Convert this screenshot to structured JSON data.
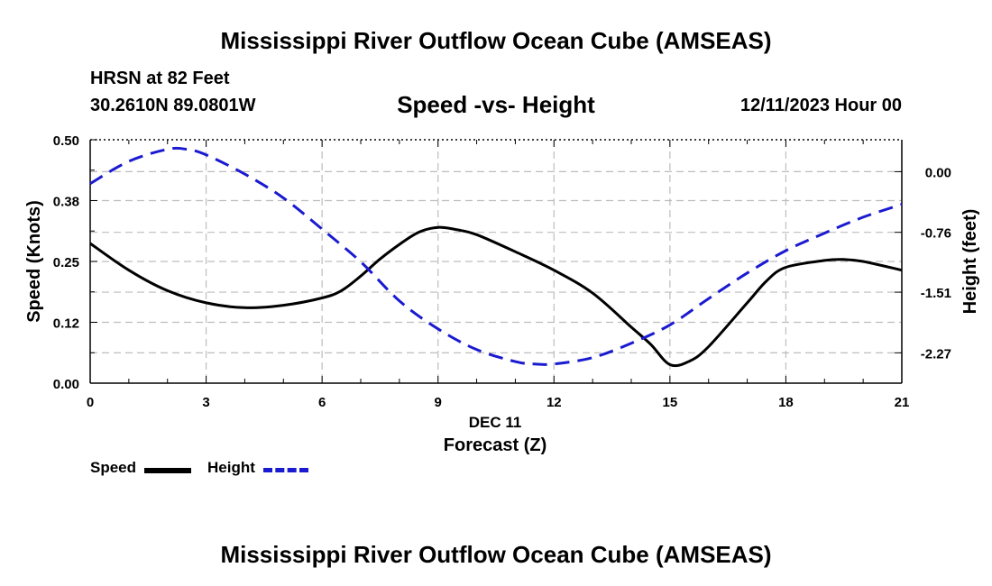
{
  "header": {
    "title": "Mississippi River Outflow Ocean Cube (AMSEAS)",
    "station_line": "HRSN at 82 Feet",
    "coords": "30.2610N  89.0801W",
    "datetime": "12/11/2023 Hour 00"
  },
  "footer": {
    "title": "Mississippi River Outflow Ocean Cube (AMSEAS)"
  },
  "colors": {
    "speed": "#000000",
    "height": "#1a1ad0",
    "grid": "#bdbdbd"
  },
  "chart_data": {
    "type": "line",
    "title": "Speed -vs- Height",
    "xlabel": "Forecast (Z)",
    "xsublabel": "DEC 11",
    "ylabel": "Speed (Knots)",
    "y2label": "Height (feet)",
    "xlim": [
      0,
      21
    ],
    "ylim": [
      0,
      0.5
    ],
    "y2lim": [
      -2.65,
      0.4
    ],
    "x_ticks": [
      0,
      3,
      6,
      9,
      12,
      15,
      18,
      21
    ],
    "y_ticks": [
      "0.00",
      "0.12",
      "0.25",
      "0.38",
      "0.50"
    ],
    "y_tick_values": [
      0,
      0.125,
      0.25,
      0.375,
      0.5
    ],
    "y2_ticks": [
      "0.00",
      "-0.76",
      "-1.51",
      "-2.27"
    ],
    "y2_tick_values": [
      0,
      -0.76,
      -1.51,
      -2.27
    ],
    "grid": true,
    "series": [
      {
        "name": "Speed",
        "axis": "left",
        "style": "solid",
        "x": [
          0,
          1,
          2,
          3,
          4,
          5,
          6,
          6.5,
          7,
          7.5,
          8,
          8.5,
          9,
          9.5,
          10,
          11,
          12,
          13,
          14,
          14.5,
          15,
          15.5,
          16,
          17,
          17.5,
          18,
          19,
          19.5,
          20,
          21
        ],
        "values": [
          0.287,
          0.232,
          0.19,
          0.165,
          0.155,
          0.16,
          0.175,
          0.19,
          0.22,
          0.255,
          0.285,
          0.31,
          0.32,
          0.315,
          0.305,
          0.27,
          0.232,
          0.185,
          0.115,
          0.08,
          0.038,
          0.045,
          0.075,
          0.165,
          0.21,
          0.238,
          0.252,
          0.254,
          0.25,
          0.232
        ]
      },
      {
        "name": "Height",
        "axis": "right",
        "style": "dashed",
        "x": [
          0,
          1,
          2,
          2.5,
          3,
          4,
          5,
          6,
          7,
          8,
          9,
          10,
          11,
          11.5,
          12,
          13,
          14,
          15,
          16,
          17,
          18,
          19,
          20,
          21
        ],
        "values": [
          -0.15,
          0.13,
          0.28,
          0.28,
          0.21,
          -0.03,
          -0.33,
          -0.72,
          -1.13,
          -1.62,
          -1.97,
          -2.23,
          -2.38,
          -2.41,
          -2.41,
          -2.33,
          -2.15,
          -1.92,
          -1.59,
          -1.27,
          -0.99,
          -0.77,
          -0.57,
          -0.41
        ]
      }
    ],
    "legend": [
      {
        "label": "Speed"
      },
      {
        "label": "Height"
      }
    ]
  }
}
